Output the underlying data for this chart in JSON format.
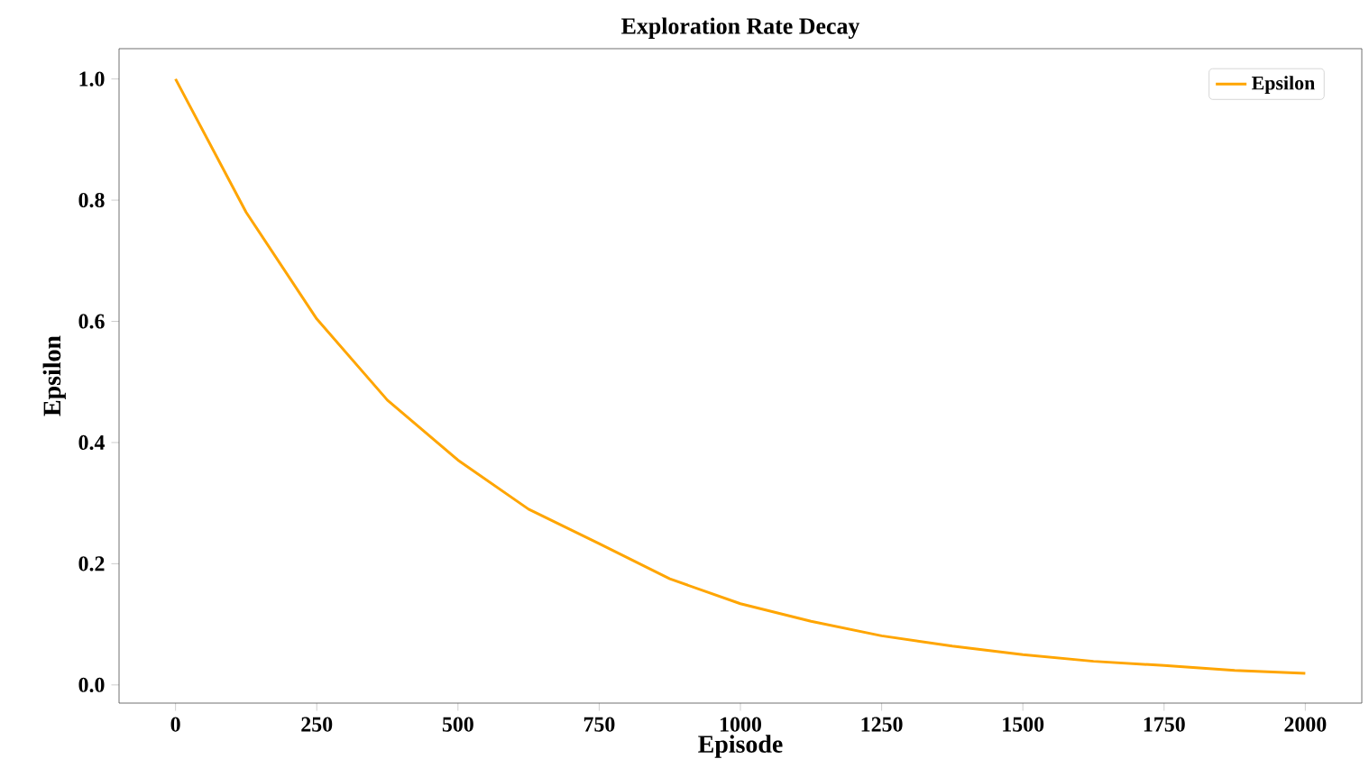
{
  "chart_data": {
    "type": "line",
    "title": "Exploration Rate Decay",
    "xlabel": "Episode",
    "ylabel": "Epsilon",
    "x": [
      0,
      125,
      250,
      375,
      500,
      625,
      750,
      875,
      1000,
      1125,
      1250,
      1375,
      1500,
      1625,
      1750,
      1875,
      2000
    ],
    "series": [
      {
        "name": "Epsilon",
        "color": "#ffa500",
        "values": [
          1.0,
          0.78,
          0.604,
          0.47,
          0.371,
          0.29,
          0.233,
          0.175,
          0.134,
          0.105,
          0.081,
          0.064,
          0.05,
          0.039,
          0.032,
          0.024,
          0.019
        ]
      }
    ],
    "xlim": [
      -100,
      2100
    ],
    "ylim": [
      -0.03,
      1.05
    ],
    "xticks": [
      0,
      250,
      500,
      750,
      1000,
      1250,
      1500,
      1750,
      2000
    ],
    "yticks": [
      {
        "value": 0,
        "label": "0.0"
      },
      {
        "value": 0.2,
        "label": "0.2"
      },
      {
        "value": 0.4,
        "label": "0.4"
      },
      {
        "value": 0.6,
        "label": "0.6"
      },
      {
        "value": 0.8,
        "label": "0.8"
      },
      {
        "value": 1.0,
        "label": "1.0"
      }
    ],
    "legend": "top right",
    "grid": false,
    "marker": "none",
    "line_style": "solid"
  }
}
